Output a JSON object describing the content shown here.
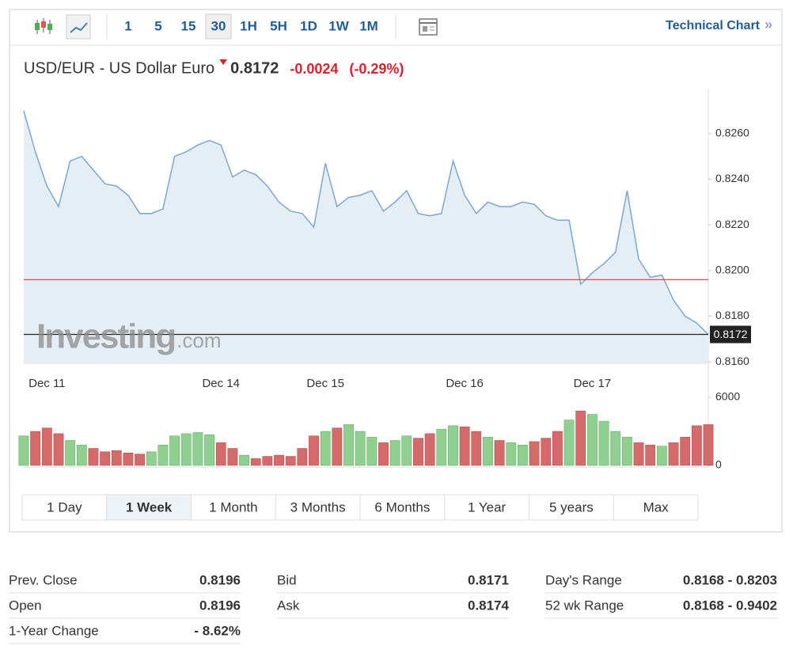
{
  "toolbar": {
    "intervals": [
      "1",
      "5",
      "15",
      "30",
      "1H",
      "5H",
      "1D",
      "1W",
      "1M"
    ],
    "active": 3,
    "technical": "Technical Chart",
    "arrow": "»"
  },
  "header": {
    "pair": "USD/EUR - US Dollar Euro",
    "price": "0.8172",
    "change": "-0.0024",
    "change_pct": "(-0.29%)"
  },
  "watermark": {
    "brand": "Investing",
    "suffix": ".com"
  },
  "chart_data": [
    {
      "type": "line",
      "color": "#7aa7d1",
      "fill": "#e6eef5",
      "categories": [
        null,
        null,
        "Dec 11",
        null,
        null,
        null,
        null,
        null,
        null,
        null,
        null,
        null,
        null,
        null,
        null,
        null,
        null,
        "Dec 14",
        null,
        null,
        null,
        null,
        null,
        null,
        null,
        null,
        "Dec 15",
        null,
        null,
        null,
        null,
        null,
        null,
        null,
        null,
        null,
        null,
        null,
        "Dec 16",
        null,
        null,
        null,
        null,
        null,
        null,
        null,
        null,
        null,
        null,
        "Dec 17",
        null,
        null,
        null,
        null,
        null,
        null,
        null,
        null,
        null,
        null
      ],
      "values": [
        0.827,
        0.8252,
        0.8237,
        0.8228,
        0.8248,
        0.825,
        0.8244,
        0.8238,
        0.8237,
        0.8233,
        0.8225,
        0.8225,
        0.8227,
        0.825,
        0.8252,
        0.8255,
        0.8257,
        0.8255,
        0.8241,
        0.8244,
        0.8242,
        0.8237,
        0.823,
        0.8226,
        0.8225,
        0.8219,
        0.8247,
        0.8228,
        0.8232,
        0.8233,
        0.8235,
        0.8226,
        0.823,
        0.8235,
        0.8225,
        0.8224,
        0.8225,
        0.8248,
        0.8233,
        0.8225,
        0.823,
        0.8228,
        0.8228,
        0.823,
        0.8229,
        0.8224,
        0.8222,
        0.8222,
        0.8194,
        0.8199,
        0.8203,
        0.8208,
        0.8235,
        0.8205,
        0.8197,
        0.8198,
        0.8187,
        0.818,
        0.8177,
        0.8172
      ],
      "ylim": [
        0.8159,
        0.8279
      ],
      "yticks": [
        {
          "value": 0.816,
          "label": "0.8160"
        },
        {
          "value": 0.818,
          "label": "0.8180"
        },
        {
          "value": 0.82,
          "label": "0.8200"
        },
        {
          "value": 0.822,
          "label": "0.8220"
        },
        {
          "value": 0.824,
          "label": "0.8240"
        },
        {
          "value": 0.826,
          "label": "0.8260"
        }
      ],
      "reference_lines": [
        {
          "value": 0.8196,
          "color": "#d9363e"
        },
        {
          "value": 0.8172,
          "label": "0.8172",
          "color": "#222222"
        }
      ]
    },
    {
      "type": "bar",
      "up_color": "#8fcf8f",
      "down_color": "#d46a6a",
      "values": [
        2600,
        3000,
        3300,
        2800,
        2200,
        1800,
        1500,
        1200,
        1300,
        1100,
        1000,
        1200,
        1800,
        2600,
        2800,
        2900,
        2700,
        2000,
        1500,
        900,
        600,
        800,
        900,
        800,
        1500,
        2600,
        3000,
        3300,
        3600,
        3000,
        2500,
        2000,
        2200,
        2600,
        2400,
        2800,
        3200,
        3500,
        3400,
        3000,
        2500,
        2200,
        2000,
        1800,
        2100,
        2400,
        3000,
        4000,
        4800,
        4500,
        3900,
        3000,
        2500,
        2000,
        1800,
        1700,
        2000,
        2500,
        3500,
        3600
      ],
      "ylim": [
        0,
        6000
      ],
      "yticks": [
        0,
        6000
      ]
    }
  ],
  "ranges": {
    "labels": [
      "1 Day",
      "1 Week",
      "1 Month",
      "3 Months",
      "6 Months",
      "1 Year",
      "5 years",
      "Max"
    ],
    "active": 1
  },
  "stats": [
    [
      {
        "label": "Prev. Close",
        "value": "0.8196"
      },
      {
        "label": "Open",
        "value": "0.8196"
      },
      {
        "label": "1-Year Change",
        "value": "- 8.62%"
      }
    ],
    [
      {
        "label": "Bid",
        "value": "0.8171"
      },
      {
        "label": "Ask",
        "value": "0.8174"
      }
    ],
    [
      {
        "label": "Day's Range",
        "value": "0.8168 - 0.8203"
      },
      {
        "label": "52 wk Range",
        "value": "0.8168 - 0.9402"
      }
    ]
  ]
}
